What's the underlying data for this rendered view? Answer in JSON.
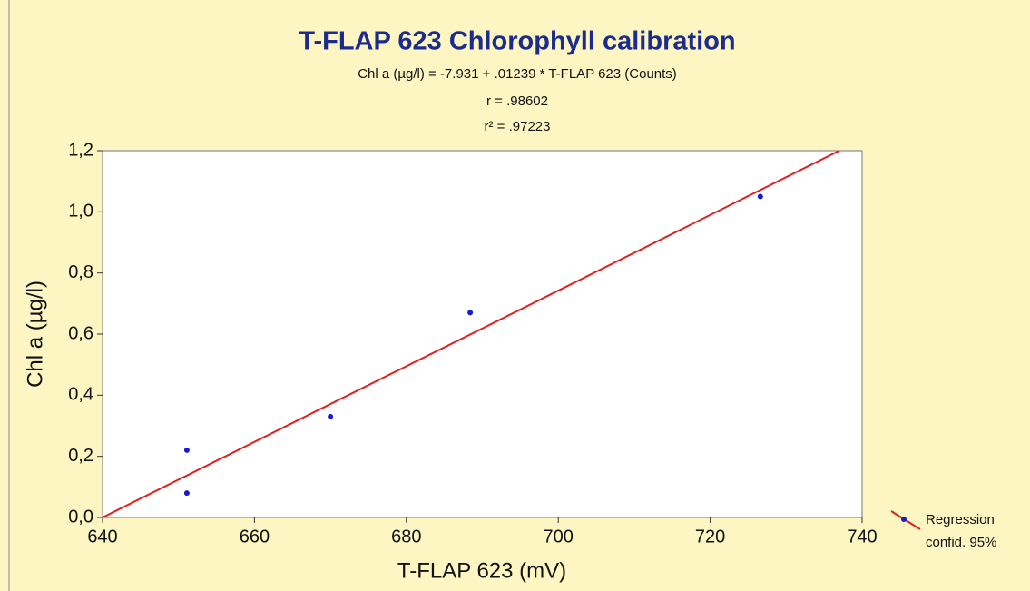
{
  "chart_data": {
    "type": "scatter",
    "title": "T-FLAP 623 Chlorophyll calibration",
    "subtitle": [
      "Chl a (µg/l) = -7.931 + .01239 * T-FLAP 623 (Counts)",
      "r = .98602",
      "r² = .97223"
    ],
    "x_label": "T-FLAP 623 (mV)",
    "y_label": "Chl a (µg/l)",
    "xlim": [
      640,
      740
    ],
    "xticks": [
      640,
      660,
      680,
      700,
      720,
      740
    ],
    "ylim": [
      0,
      1.2
    ],
    "yticks": [
      {
        "value": 0,
        "label": "0,0"
      },
      {
        "value": 0.2,
        "label": "0,2"
      },
      {
        "value": 0.4,
        "label": "0,4"
      },
      {
        "value": 0.6,
        "label": "0,6"
      },
      {
        "value": 0.8,
        "label": "0,8"
      },
      {
        "value": 1.0,
        "label": "1,0"
      },
      {
        "value": 1.2,
        "label": "1,2"
      }
    ],
    "points": {
      "color": "#1a1ad0",
      "x": [
        651.1,
        651.1,
        670,
        688.4,
        726.6
      ],
      "values": [
        0.22,
        0.08,
        0.33,
        0.67,
        1.05
      ]
    },
    "regression": {
      "color": "#e02020",
      "x": [
        640,
        737
      ],
      "values": [
        0,
        1.2
      ]
    },
    "legend": [
      "Regression",
      "confid. 95%"
    ],
    "grid": false
  }
}
